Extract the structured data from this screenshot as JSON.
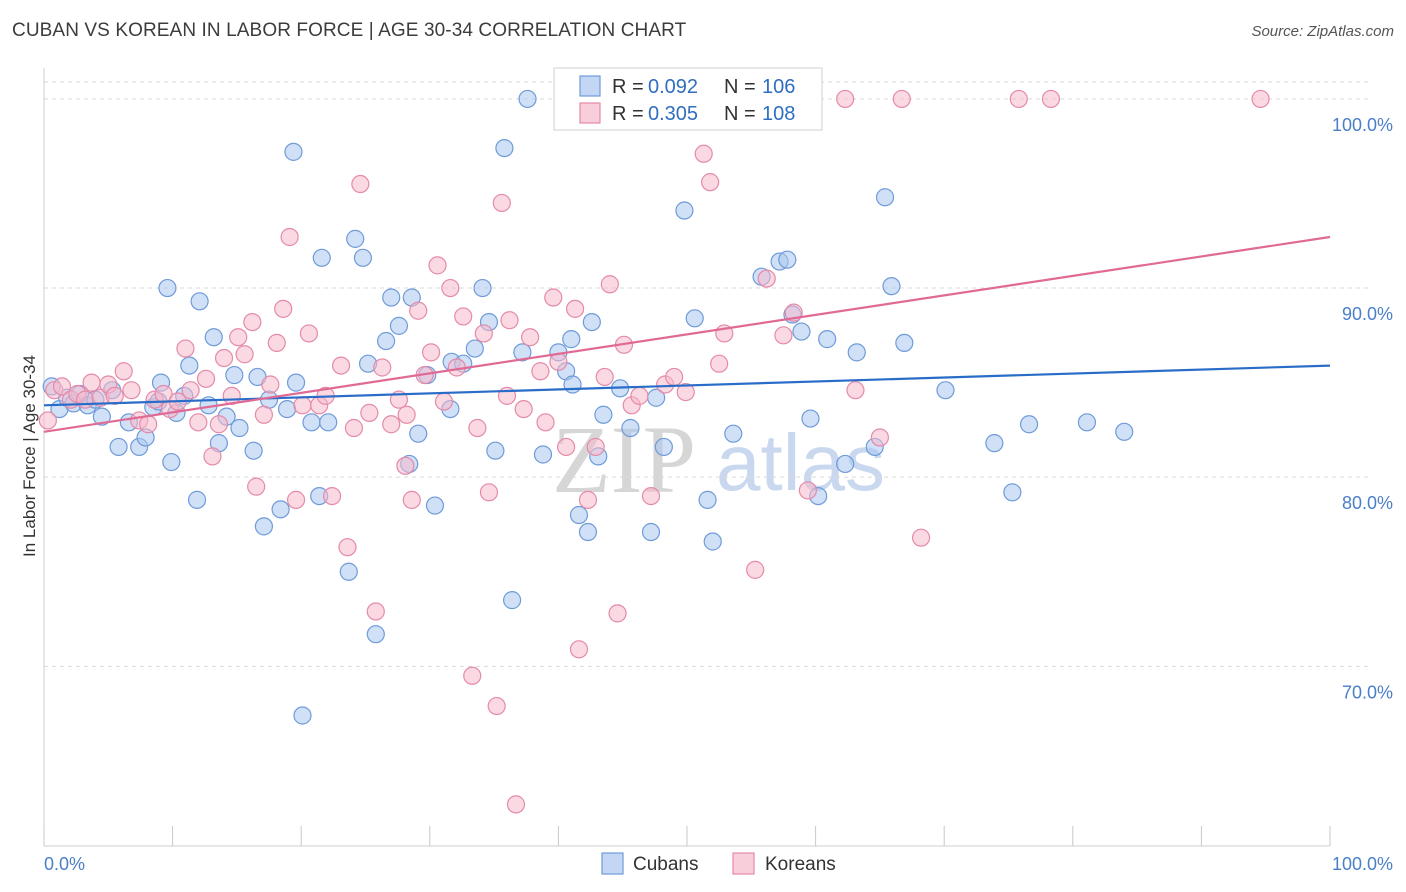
{
  "title": "CUBAN VS KOREAN IN LABOR FORCE | AGE 30-34 CORRELATION CHART",
  "source": "Source: ZipAtlas.com",
  "watermark": {
    "zip": "ZIP",
    "atlas": "atlas"
  },
  "colors": {
    "cubans_fill": "#a9c6f0",
    "cubans_stroke": "#6f9bd8",
    "cubans_line": "#2a6dc9",
    "koreans_fill": "#f6b9cc",
    "koreans_stroke": "#e58aa8",
    "koreans_line": "#e06a94",
    "grid": "#d9d9d9",
    "axis_text": "#4a7fc8"
  },
  "legend": {
    "rows": [
      {
        "r_label": "R =",
        "r_value": "0.092",
        "n_label": "N =",
        "n_value": "106"
      },
      {
        "r_label": "R =",
        "r_value": "0.305",
        "n_label": "N =",
        "n_value": "108"
      }
    ]
  },
  "bottom_legend": {
    "cubans": "Cubans",
    "koreans": "Koreans"
  },
  "chart_data": {
    "type": "scatter",
    "title": "CUBAN VS KOREAN IN LABOR FORCE | AGE 30-34 CORRELATION CHART",
    "xlabel": "",
    "ylabel": "In Labor Force | Age 30-34",
    "xlim": [
      0,
      100
    ],
    "ylim": [
      60.5,
      101
    ],
    "x_tick_labels": [
      "0.0%",
      "100.0%"
    ],
    "y_ticks": [
      70,
      80,
      90,
      100
    ],
    "y_tick_labels": [
      "70.0%",
      "80.0%",
      "90.0%",
      "100.0%"
    ],
    "grid": true,
    "series": [
      {
        "name": "Cubans",
        "R": 0.092,
        "N": 106,
        "trend": {
          "x": [
            0,
            100
          ],
          "y": [
            83.8,
            85.9
          ]
        },
        "points": [
          [
            0.6,
            84.8
          ],
          [
            1.2,
            83.6
          ],
          [
            1.8,
            84.2
          ],
          [
            2.3,
            83.9
          ],
          [
            2.8,
            84.4
          ],
          [
            3.4,
            83.8
          ],
          [
            4.0,
            84.1
          ],
          [
            4.5,
            83.2
          ],
          [
            5.3,
            84.6
          ],
          [
            5.8,
            81.6
          ],
          [
            6.6,
            82.9
          ],
          [
            7.4,
            81.6
          ],
          [
            7.9,
            82.1
          ],
          [
            8.5,
            83.7
          ],
          [
            8.9,
            84.0
          ],
          [
            9.1,
            85.0
          ],
          [
            9.6,
            90.0
          ],
          [
            9.9,
            80.8
          ],
          [
            10.3,
            83.4
          ],
          [
            10.9,
            84.3
          ],
          [
            11.3,
            85.9
          ],
          [
            11.9,
            78.8
          ],
          [
            12.1,
            89.3
          ],
          [
            12.8,
            83.8
          ],
          [
            13.2,
            87.4
          ],
          [
            13.6,
            81.8
          ],
          [
            14.2,
            83.2
          ],
          [
            14.8,
            85.4
          ],
          [
            15.2,
            82.6
          ],
          [
            16.3,
            81.4
          ],
          [
            16.6,
            85.3
          ],
          [
            17.1,
            77.4
          ],
          [
            17.5,
            84.1
          ],
          [
            18.4,
            78.3
          ],
          [
            18.9,
            83.6
          ],
          [
            19.4,
            97.2
          ],
          [
            19.6,
            85.0
          ],
          [
            20.1,
            67.4
          ],
          [
            20.8,
            82.9
          ],
          [
            21.4,
            79.0
          ],
          [
            21.6,
            91.6
          ],
          [
            22.1,
            82.9
          ],
          [
            23.7,
            75.0
          ],
          [
            24.2,
            92.6
          ],
          [
            24.8,
            91.6
          ],
          [
            25.2,
            86.0
          ],
          [
            25.8,
            71.7
          ],
          [
            26.6,
            87.2
          ],
          [
            27.0,
            89.5
          ],
          [
            27.6,
            88.0
          ],
          [
            28.4,
            80.7
          ],
          [
            28.6,
            89.5
          ],
          [
            29.1,
            82.3
          ],
          [
            29.8,
            85.4
          ],
          [
            30.4,
            78.5
          ],
          [
            31.6,
            83.6
          ],
          [
            31.7,
            86.1
          ],
          [
            32.6,
            86.0
          ],
          [
            33.5,
            86.8
          ],
          [
            34.1,
            90.0
          ],
          [
            34.6,
            88.2
          ],
          [
            35.1,
            81.4
          ],
          [
            35.8,
            97.4
          ],
          [
            36.4,
            73.5
          ],
          [
            37.2,
            86.6
          ],
          [
            37.6,
            100.0
          ],
          [
            38.8,
            81.2
          ],
          [
            40.0,
            86.6
          ],
          [
            40.6,
            85.6
          ],
          [
            41.0,
            87.3
          ],
          [
            41.1,
            84.9
          ],
          [
            41.6,
            78.0
          ],
          [
            42.3,
            77.1
          ],
          [
            42.6,
            88.2
          ],
          [
            43.1,
            81.1
          ],
          [
            43.5,
            83.3
          ],
          [
            44.8,
            84.7
          ],
          [
            45.6,
            82.6
          ],
          [
            47.2,
            77.1
          ],
          [
            47.6,
            84.2
          ],
          [
            48.2,
            81.6
          ],
          [
            49.8,
            94.1
          ],
          [
            50.6,
            88.4
          ],
          [
            51.6,
            78.8
          ],
          [
            52.0,
            76.6
          ],
          [
            53.6,
            82.3
          ],
          [
            55.8,
            90.6
          ],
          [
            57.2,
            91.4
          ],
          [
            57.8,
            91.5
          ],
          [
            58.2,
            88.6
          ],
          [
            58.9,
            87.7
          ],
          [
            59.6,
            83.1
          ],
          [
            60.2,
            79.0
          ],
          [
            60.9,
            87.3
          ],
          [
            62.3,
            80.7
          ],
          [
            63.2,
            86.6
          ],
          [
            64.6,
            81.6
          ],
          [
            65.4,
            94.8
          ],
          [
            65.9,
            90.1
          ],
          [
            66.9,
            87.1
          ],
          [
            70.1,
            84.6
          ],
          [
            73.9,
            81.8
          ],
          [
            75.3,
            79.2
          ],
          [
            76.6,
            82.8
          ],
          [
            81.1,
            82.9
          ],
          [
            84.0,
            82.4
          ]
        ]
      },
      {
        "name": "Koreans",
        "R": 0.305,
        "N": 108,
        "trend": {
          "x": [
            0,
            100
          ],
          "y": [
            82.4,
            92.7
          ]
        },
        "points": [
          [
            0.3,
            83.0
          ],
          [
            0.8,
            84.6
          ],
          [
            1.4,
            84.8
          ],
          [
            2.1,
            84.1
          ],
          [
            2.6,
            84.4
          ],
          [
            3.2,
            84.1
          ],
          [
            3.7,
            85.0
          ],
          [
            4.4,
            84.2
          ],
          [
            5.0,
            84.9
          ],
          [
            5.5,
            84.3
          ],
          [
            6.2,
            85.6
          ],
          [
            6.8,
            84.6
          ],
          [
            7.4,
            83.0
          ],
          [
            8.1,
            82.8
          ],
          [
            8.6,
            84.1
          ],
          [
            9.3,
            84.4
          ],
          [
            9.8,
            83.6
          ],
          [
            10.4,
            84.0
          ],
          [
            11.0,
            86.8
          ],
          [
            11.4,
            84.6
          ],
          [
            12.0,
            82.9
          ],
          [
            12.6,
            85.2
          ],
          [
            13.1,
            81.1
          ],
          [
            13.6,
            82.8
          ],
          [
            14.0,
            86.3
          ],
          [
            14.6,
            84.3
          ],
          [
            15.1,
            87.4
          ],
          [
            15.6,
            86.5
          ],
          [
            16.2,
            88.2
          ],
          [
            16.5,
            79.5
          ],
          [
            17.1,
            83.3
          ],
          [
            17.6,
            84.9
          ],
          [
            18.1,
            87.1
          ],
          [
            18.6,
            88.9
          ],
          [
            19.1,
            92.7
          ],
          [
            19.6,
            78.8
          ],
          [
            20.1,
            83.8
          ],
          [
            20.6,
            87.6
          ],
          [
            21.4,
            83.8
          ],
          [
            21.9,
            84.3
          ],
          [
            22.4,
            79.0
          ],
          [
            23.1,
            85.9
          ],
          [
            23.6,
            76.3
          ],
          [
            24.1,
            82.6
          ],
          [
            24.6,
            95.5
          ],
          [
            25.3,
            83.4
          ],
          [
            25.8,
            72.9
          ],
          [
            26.3,
            85.8
          ],
          [
            27.0,
            82.8
          ],
          [
            27.6,
            84.1
          ],
          [
            28.1,
            80.6
          ],
          [
            28.6,
            78.8
          ],
          [
            29.1,
            88.8
          ],
          [
            29.6,
            85.4
          ],
          [
            30.1,
            86.6
          ],
          [
            30.6,
            91.2
          ],
          [
            31.1,
            84.0
          ],
          [
            31.6,
            90.0
          ],
          [
            32.1,
            85.8
          ],
          [
            32.6,
            88.5
          ],
          [
            33.3,
            69.5
          ],
          [
            33.7,
            82.6
          ],
          [
            34.2,
            87.6
          ],
          [
            34.6,
            79.2
          ],
          [
            35.2,
            67.9
          ],
          [
            35.6,
            94.5
          ],
          [
            36.2,
            88.3
          ],
          [
            36.7,
            62.7
          ],
          [
            37.3,
            83.6
          ],
          [
            37.8,
            87.4
          ],
          [
            38.6,
            85.6
          ],
          [
            39.0,
            82.9
          ],
          [
            39.6,
            89.5
          ],
          [
            40.0,
            86.1
          ],
          [
            40.6,
            81.6
          ],
          [
            41.3,
            88.9
          ],
          [
            41.6,
            70.9
          ],
          [
            42.3,
            78.8
          ],
          [
            42.9,
            81.6
          ],
          [
            43.6,
            85.3
          ],
          [
            44.0,
            90.2
          ],
          [
            44.6,
            72.8
          ],
          [
            45.1,
            87.0
          ],
          [
            45.7,
            83.8
          ],
          [
            46.3,
            84.3
          ],
          [
            47.2,
            79.0
          ],
          [
            48.3,
            84.9
          ],
          [
            49.0,
            85.3
          ],
          [
            49.9,
            84.5
          ],
          [
            51.3,
            97.1
          ],
          [
            51.8,
            95.6
          ],
          [
            52.5,
            86.0
          ],
          [
            52.9,
            87.6
          ],
          [
            55.3,
            75.1
          ],
          [
            56.2,
            90.5
          ],
          [
            57.5,
            87.5
          ],
          [
            58.3,
            88.7
          ],
          [
            59.4,
            79.3
          ],
          [
            62.3,
            100.0
          ],
          [
            63.1,
            84.6
          ],
          [
            65.0,
            82.1
          ],
          [
            66.7,
            100.0
          ],
          [
            68.2,
            76.8
          ],
          [
            75.8,
            100.0
          ],
          [
            78.3,
            100.0
          ],
          [
            94.6,
            100.0
          ],
          [
            36.0,
            84.3
          ],
          [
            28.2,
            83.3
          ]
        ]
      }
    ]
  }
}
